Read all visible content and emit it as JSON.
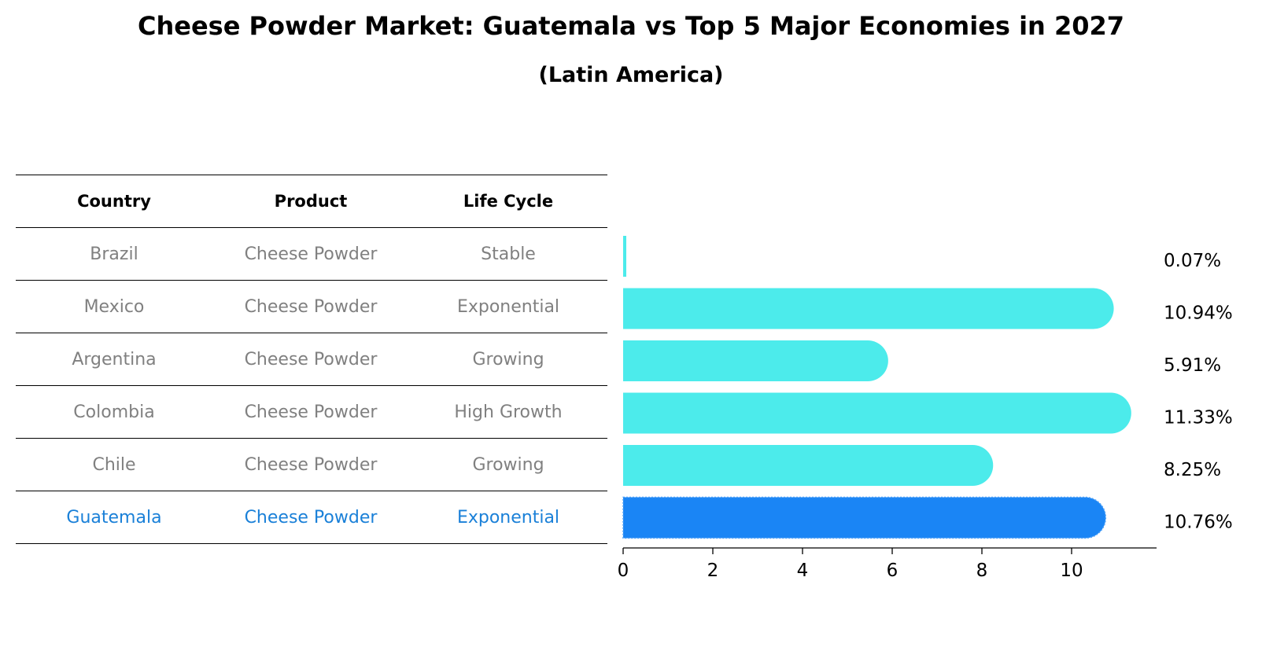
{
  "header": {
    "title": "Cheese Powder Market: Guatemala vs Top 5 Major Economies in 2027",
    "subtitle": "(Latin America)"
  },
  "table": {
    "columns": [
      "Country",
      "Product",
      "Life Cycle"
    ],
    "rows": [
      [
        "Brazil",
        "Cheese Powder",
        "Stable"
      ],
      [
        "Mexico",
        "Cheese Powder",
        "Exponential"
      ],
      [
        "Argentina",
        "Cheese Powder",
        "Growing"
      ],
      [
        "Colombia",
        "Cheese Powder",
        "High Growth"
      ],
      [
        "Chile",
        "Cheese Powder",
        "Growing"
      ],
      [
        "Guatemala",
        "Cheese Powder",
        "Exponential"
      ]
    ],
    "highlight_row": 5
  },
  "chart_data": {
    "type": "bar",
    "orientation": "horizontal",
    "categories": [
      "Brazil",
      "Mexico",
      "Argentina",
      "Colombia",
      "Chile",
      "Guatemala"
    ],
    "values": [
      0.07,
      10.94,
      5.91,
      11.33,
      8.25,
      10.76
    ],
    "value_labels": [
      "0.07%",
      "10.94%",
      "5.91%",
      "11.33%",
      "8.25%",
      "10.76%"
    ],
    "xlim": [
      0,
      11.9
    ],
    "xticks": [
      0,
      2,
      4,
      6,
      8,
      10
    ],
    "highlight": "Guatemala",
    "colors": {
      "bar": "#4cebeb",
      "highlight": "#1a85f5",
      "text": "#000000",
      "muted": "#808080"
    }
  }
}
